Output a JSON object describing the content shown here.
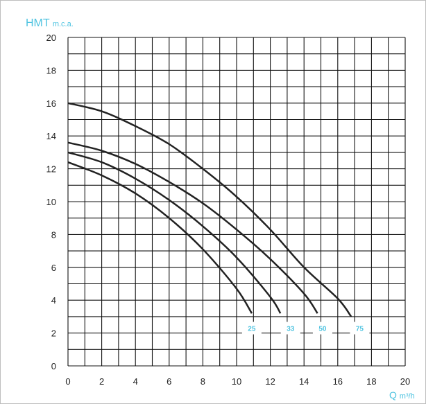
{
  "chart_data": {
    "type": "line",
    "ylabel": "HMT",
    "ylabel_unit": "m.c.a.",
    "xlabel": "Q",
    "xlabel_unit": "m³/h",
    "xlim": [
      0,
      20
    ],
    "ylim": [
      0,
      20
    ],
    "x_ticks": [
      "0",
      "2",
      "4",
      "6",
      "8",
      "10",
      "12",
      "14",
      "16",
      "18",
      "20"
    ],
    "y_ticks": [
      "0",
      "2",
      "4",
      "6",
      "8",
      "10",
      "12",
      "14",
      "16",
      "18",
      "20"
    ],
    "grid": true,
    "series": [
      {
        "name": "25",
        "x": [
          0,
          2,
          4,
          6,
          8,
          10,
          10.9
        ],
        "y": [
          12.4,
          11.6,
          10.5,
          9.0,
          7.1,
          4.7,
          3.2
        ]
      },
      {
        "name": "33",
        "x": [
          0,
          2,
          4,
          6,
          8,
          10,
          12,
          12.6
        ],
        "y": [
          13.0,
          12.4,
          11.4,
          10.1,
          8.5,
          6.6,
          4.2,
          3.2
        ]
      },
      {
        "name": "50",
        "x": [
          0,
          2,
          4,
          6,
          8,
          10,
          12,
          14,
          14.8
        ],
        "y": [
          13.6,
          13.1,
          12.3,
          11.2,
          9.9,
          8.3,
          6.5,
          4.4,
          3.2
        ]
      },
      {
        "name": "75",
        "x": [
          0,
          2,
          4,
          6,
          8,
          10,
          12,
          14,
          16,
          16.8
        ],
        "y": [
          16.0,
          15.5,
          14.6,
          13.5,
          12.0,
          10.3,
          8.3,
          6.0,
          4.1,
          3.0
        ]
      }
    ],
    "label_y": 2.3,
    "label_x": [
      10.9,
      13.2,
      15.1,
      17.3
    ],
    "colors": {
      "curve": "#222222",
      "grid": "#111111",
      "label": "#4ec3e0",
      "axis_title": "#4ec3e0"
    }
  }
}
